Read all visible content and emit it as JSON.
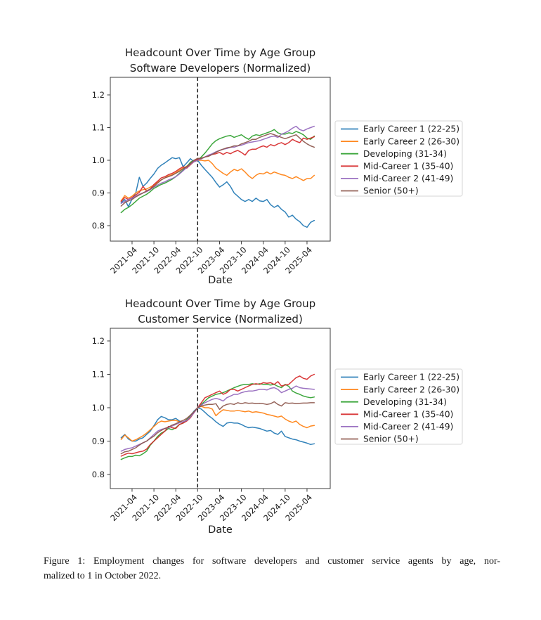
{
  "caption": {
    "line1": "Figure 1: Employment changes for software developers and customer service agents by age, nor-",
    "line2": "malized to 1 in October 2022."
  },
  "chart_data": [
    {
      "type": "line",
      "title": "Headcount Over Time by Age Group",
      "subtitle": "Software Developers (Normalized)",
      "xlabel": "Date",
      "ylabel": "",
      "ylim": [
        0.75,
        1.25
      ],
      "y_ticks": [
        0.8,
        0.9,
        1.0,
        1.1,
        1.2
      ],
      "x_tick_labels": [
        "2021-04",
        "2021-10",
        "2022-04",
        "2022-10",
        "2023-04",
        "2023-10",
        "2024-04",
        "2024-10",
        "2025-04"
      ],
      "reference_line_x": "2022-10",
      "reference_line_style": "dashed-black",
      "legend_position": "right-outside",
      "grid": false,
      "x": [
        "2021-01",
        "2021-02",
        "2021-03",
        "2021-04",
        "2021-05",
        "2021-06",
        "2021-07",
        "2021-08",
        "2021-09",
        "2021-10",
        "2021-11",
        "2021-12",
        "2022-01",
        "2022-02",
        "2022-03",
        "2022-04",
        "2022-05",
        "2022-06",
        "2022-07",
        "2022-08",
        "2022-09",
        "2022-10",
        "2022-11",
        "2022-12",
        "2023-01",
        "2023-02",
        "2023-03",
        "2023-04",
        "2023-05",
        "2023-06",
        "2023-07",
        "2023-08",
        "2023-09",
        "2023-10",
        "2023-11",
        "2023-12",
        "2024-01",
        "2024-02",
        "2024-03",
        "2024-04",
        "2024-05",
        "2024-06",
        "2024-07",
        "2024-08",
        "2024-09",
        "2024-10",
        "2024-11",
        "2024-12",
        "2025-01",
        "2025-02",
        "2025-03",
        "2025-04",
        "2025-05",
        "2025-06"
      ],
      "series": [
        {
          "name": "Early Career 1 (22-25)",
          "color": "#1f77b4",
          "values": [
            0.87,
            0.88,
            0.858,
            0.882,
            0.9,
            0.948,
            0.92,
            0.93,
            0.945,
            0.958,
            0.975,
            0.985,
            0.992,
            1.0,
            1.008,
            1.005,
            1.008,
            0.98,
            0.992,
            1.005,
            0.995,
            1.0,
            0.985,
            0.972,
            0.96,
            0.948,
            0.932,
            0.918,
            0.925,
            0.934,
            0.92,
            0.9,
            0.89,
            0.88,
            0.874,
            0.88,
            0.874,
            0.884,
            0.876,
            0.874,
            0.88,
            0.864,
            0.856,
            0.862,
            0.85,
            0.842,
            0.826,
            0.832,
            0.82,
            0.812,
            0.8,
            0.795,
            0.81,
            0.816
          ]
        },
        {
          "name": "Early Career 2 (26-30)",
          "color": "#ff7f0e",
          "values": [
            0.876,
            0.892,
            0.884,
            0.89,
            0.9,
            0.906,
            0.91,
            0.912,
            0.918,
            0.924,
            0.932,
            0.94,
            0.946,
            0.952,
            0.956,
            0.962,
            0.97,
            0.976,
            0.982,
            0.99,
            0.996,
            1.0,
            1.0,
            0.998,
            1.0,
            0.99,
            0.976,
            0.968,
            0.96,
            0.954,
            0.964,
            0.972,
            0.968,
            0.974,
            0.964,
            0.952,
            0.944,
            0.954,
            0.96,
            0.958,
            0.964,
            0.958,
            0.964,
            0.96,
            0.956,
            0.954,
            0.948,
            0.944,
            0.95,
            0.944,
            0.938,
            0.944,
            0.944,
            0.954
          ]
        },
        {
          "name": "Developing (31-34)",
          "color": "#2ca02c",
          "values": [
            0.84,
            0.85,
            0.856,
            0.864,
            0.874,
            0.884,
            0.89,
            0.896,
            0.904,
            0.914,
            0.92,
            0.926,
            0.93,
            0.936,
            0.942,
            0.95,
            0.96,
            0.97,
            0.98,
            0.994,
            1.0,
            1.0,
            1.01,
            1.022,
            1.036,
            1.05,
            1.06,
            1.066,
            1.07,
            1.074,
            1.076,
            1.07,
            1.074,
            1.078,
            1.07,
            1.064,
            1.074,
            1.078,
            1.076,
            1.08,
            1.084,
            1.088,
            1.094,
            1.084,
            1.08,
            1.08,
            1.084,
            1.082,
            1.088,
            1.084,
            1.078,
            1.068,
            1.064,
            1.074
          ]
        },
        {
          "name": "Mid-Career 1 (35-40)",
          "color": "#d62728",
          "values": [
            0.874,
            0.886,
            0.88,
            0.886,
            0.894,
            0.902,
            0.92,
            0.906,
            0.912,
            0.926,
            0.936,
            0.946,
            0.95,
            0.956,
            0.96,
            0.966,
            0.974,
            0.98,
            0.976,
            0.986,
            0.996,
            1.004,
            1.006,
            1.01,
            1.014,
            1.018,
            1.02,
            1.024,
            1.018,
            1.024,
            1.02,
            1.026,
            1.03,
            1.024,
            1.016,
            1.03,
            1.034,
            1.034,
            1.04,
            1.044,
            1.04,
            1.048,
            1.044,
            1.05,
            1.054,
            1.048,
            1.054,
            1.064,
            1.058,
            1.054,
            1.068,
            1.064,
            1.068,
            1.072
          ]
        },
        {
          "name": "Mid-Career 2 (41-49)",
          "color": "#9467bd",
          "values": [
            0.868,
            0.874,
            0.88,
            0.884,
            0.89,
            0.896,
            0.9,
            0.904,
            0.91,
            0.918,
            0.924,
            0.93,
            0.934,
            0.94,
            0.944,
            0.95,
            0.958,
            0.968,
            0.978,
            0.988,
            0.996,
            1.0,
            1.004,
            1.01,
            1.016,
            1.02,
            1.026,
            1.03,
            1.034,
            1.036,
            1.04,
            1.04,
            1.044,
            1.046,
            1.05,
            1.054,
            1.056,
            1.058,
            1.06,
            1.064,
            1.068,
            1.072,
            1.074,
            1.07,
            1.08,
            1.084,
            1.09,
            1.098,
            1.104,
            1.094,
            1.09,
            1.096,
            1.1,
            1.104
          ]
        },
        {
          "name": "Senior (50+)",
          "color": "#8c564b",
          "values": [
            0.86,
            0.87,
            0.876,
            0.88,
            0.888,
            0.894,
            0.9,
            0.906,
            0.912,
            0.92,
            0.93,
            0.94,
            0.946,
            0.95,
            0.954,
            0.96,
            0.966,
            0.974,
            0.98,
            0.99,
            1.0,
            1.006,
            1.006,
            1.01,
            1.012,
            1.018,
            1.024,
            1.03,
            1.034,
            1.038,
            1.04,
            1.044,
            1.044,
            1.05,
            1.054,
            1.058,
            1.064,
            1.064,
            1.07,
            1.074,
            1.078,
            1.082,
            1.078,
            1.074,
            1.07,
            1.066,
            1.07,
            1.074,
            1.078,
            1.068,
            1.058,
            1.05,
            1.044,
            1.04
          ]
        }
      ]
    },
    {
      "type": "line",
      "title": "Headcount Over Time by Age Group",
      "subtitle": "Customer Service (Normalized)",
      "xlabel": "Date",
      "ylabel": "",
      "ylim": [
        0.75,
        1.25
      ],
      "y_ticks": [
        0.8,
        0.9,
        1.0,
        1.1,
        1.2
      ],
      "x_tick_labels": [
        "2021-04",
        "2021-10",
        "2022-04",
        "2022-10",
        "2023-04",
        "2023-10",
        "2024-04",
        "2024-10",
        "2025-04"
      ],
      "reference_line_x": "2022-10",
      "reference_line_style": "dashed-black",
      "legend_position": "right-outside",
      "grid": false,
      "x": [
        "2021-01",
        "2021-02",
        "2021-03",
        "2021-04",
        "2021-05",
        "2021-06",
        "2021-07",
        "2021-08",
        "2021-09",
        "2021-10",
        "2021-11",
        "2021-12",
        "2022-01",
        "2022-02",
        "2022-03",
        "2022-04",
        "2022-05",
        "2022-06",
        "2022-07",
        "2022-08",
        "2022-09",
        "2022-10",
        "2022-11",
        "2022-12",
        "2023-01",
        "2023-02",
        "2023-03",
        "2023-04",
        "2023-05",
        "2023-06",
        "2023-07",
        "2023-08",
        "2023-09",
        "2023-10",
        "2023-11",
        "2023-12",
        "2024-01",
        "2024-02",
        "2024-03",
        "2024-04",
        "2024-05",
        "2024-06",
        "2024-07",
        "2024-08",
        "2024-09",
        "2024-10",
        "2024-11",
        "2024-12",
        "2025-01",
        "2025-02",
        "2025-03",
        "2025-04",
        "2025-05",
        "2025-06"
      ],
      "series": [
        {
          "name": "Early Career 1 (22-25)",
          "color": "#1f77b4",
          "values": [
            0.91,
            0.92,
            0.906,
            0.9,
            0.9,
            0.906,
            0.91,
            0.92,
            0.93,
            0.946,
            0.964,
            0.974,
            0.97,
            0.964,
            0.964,
            0.968,
            0.96,
            0.956,
            0.964,
            0.976,
            0.99,
            1.0,
            0.996,
            0.986,
            0.976,
            0.968,
            0.958,
            0.95,
            0.944,
            0.954,
            0.956,
            0.954,
            0.954,
            0.95,
            0.944,
            0.94,
            0.942,
            0.94,
            0.938,
            0.934,
            0.93,
            0.932,
            0.924,
            0.92,
            0.93,
            0.914,
            0.91,
            0.906,
            0.904,
            0.9,
            0.897,
            0.894,
            0.89,
            0.892
          ]
        },
        {
          "name": "Early Career 2 (26-30)",
          "color": "#ff7f0e",
          "values": [
            0.905,
            0.918,
            0.91,
            0.9,
            0.904,
            0.91,
            0.916,
            0.924,
            0.934,
            0.944,
            0.954,
            0.96,
            0.958,
            0.96,
            0.962,
            0.962,
            0.958,
            0.956,
            0.964,
            0.974,
            0.986,
            1.0,
            1.004,
            1.0,
            1.0,
            0.996,
            0.976,
            0.986,
            0.994,
            0.992,
            0.99,
            0.99,
            0.992,
            0.99,
            0.988,
            0.99,
            0.986,
            0.988,
            0.986,
            0.984,
            0.98,
            0.978,
            0.975,
            0.972,
            0.975,
            0.966,
            0.96,
            0.956,
            0.96,
            0.95,
            0.944,
            0.94,
            0.945,
            0.947
          ]
        },
        {
          "name": "Developing (31-34)",
          "color": "#2ca02c",
          "values": [
            0.845,
            0.85,
            0.854,
            0.854,
            0.858,
            0.856,
            0.862,
            0.87,
            0.888,
            0.9,
            0.914,
            0.924,
            0.93,
            0.938,
            0.934,
            0.94,
            0.95,
            0.954,
            0.964,
            0.974,
            0.986,
            1.0,
            1.01,
            1.02,
            1.03,
            1.035,
            1.04,
            1.042,
            1.045,
            1.05,
            1.055,
            1.06,
            1.064,
            1.068,
            1.07,
            1.07,
            1.072,
            1.07,
            1.072,
            1.07,
            1.07,
            1.068,
            1.07,
            1.064,
            1.06,
            1.07,
            1.064,
            1.05,
            1.044,
            1.04,
            1.035,
            1.032,
            1.03,
            1.032
          ]
        },
        {
          "name": "Mid-Career 1 (35-40)",
          "color": "#d62728",
          "values": [
            0.855,
            0.86,
            0.864,
            0.862,
            0.865,
            0.868,
            0.87,
            0.876,
            0.89,
            0.9,
            0.91,
            0.92,
            0.93,
            0.944,
            0.94,
            0.938,
            0.95,
            0.954,
            0.96,
            0.97,
            0.985,
            1.0,
            1.015,
            1.03,
            1.035,
            1.04,
            1.045,
            1.05,
            1.04,
            1.045,
            1.055,
            1.055,
            1.05,
            1.055,
            1.06,
            1.065,
            1.07,
            1.072,
            1.07,
            1.075,
            1.073,
            1.075,
            1.07,
            1.078,
            1.065,
            1.068,
            1.07,
            1.08,
            1.09,
            1.095,
            1.088,
            1.085,
            1.095,
            1.1
          ]
        },
        {
          "name": "Mid-Career 2 (41-49)",
          "color": "#9467bd",
          "values": [
            0.87,
            0.875,
            0.878,
            0.88,
            0.885,
            0.89,
            0.895,
            0.9,
            0.91,
            0.92,
            0.93,
            0.935,
            0.938,
            0.94,
            0.945,
            0.95,
            0.955,
            0.958,
            0.962,
            0.972,
            0.985,
            1.0,
            1.008,
            1.015,
            1.02,
            1.025,
            1.028,
            1.025,
            1.02,
            1.03,
            1.035,
            1.04,
            1.04,
            1.045,
            1.048,
            1.05,
            1.05,
            1.052,
            1.055,
            1.055,
            1.053,
            1.058,
            1.06,
            1.055,
            1.045,
            1.05,
            1.055,
            1.058,
            1.065,
            1.06,
            1.058,
            1.057,
            1.056,
            1.055
          ]
        },
        {
          "name": "Senior (50+)",
          "color": "#8c564b",
          "values": [
            0.862,
            0.868,
            0.87,
            0.875,
            0.88,
            0.888,
            0.895,
            0.9,
            0.908,
            0.915,
            0.925,
            0.932,
            0.938,
            0.942,
            0.948,
            0.952,
            0.958,
            0.962,
            0.968,
            0.978,
            0.988,
            1.0,
            1.005,
            1.008,
            1.01,
            1.01,
            1.012,
            0.995,
            1.005,
            1.01,
            1.012,
            1.01,
            1.015,
            1.012,
            1.015,
            1.013,
            1.014,
            1.012,
            1.013,
            1.012,
            1.01,
            1.012,
            1.018,
            1.01,
            1.005,
            1.015,
            1.013,
            1.014,
            1.012,
            1.013,
            1.014,
            1.014,
            1.015,
            1.015
          ]
        }
      ]
    }
  ]
}
